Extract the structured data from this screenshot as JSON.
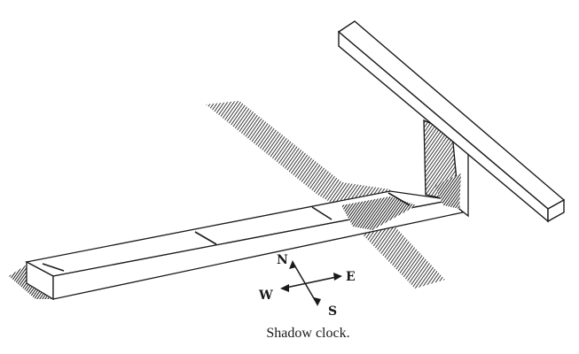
{
  "caption": "Shadow clock.",
  "compass": {
    "north": "N",
    "east": "E",
    "south": "S",
    "west": "W"
  },
  "colors": {
    "ink": "#1a1a1a",
    "paper": "#ffffff"
  }
}
